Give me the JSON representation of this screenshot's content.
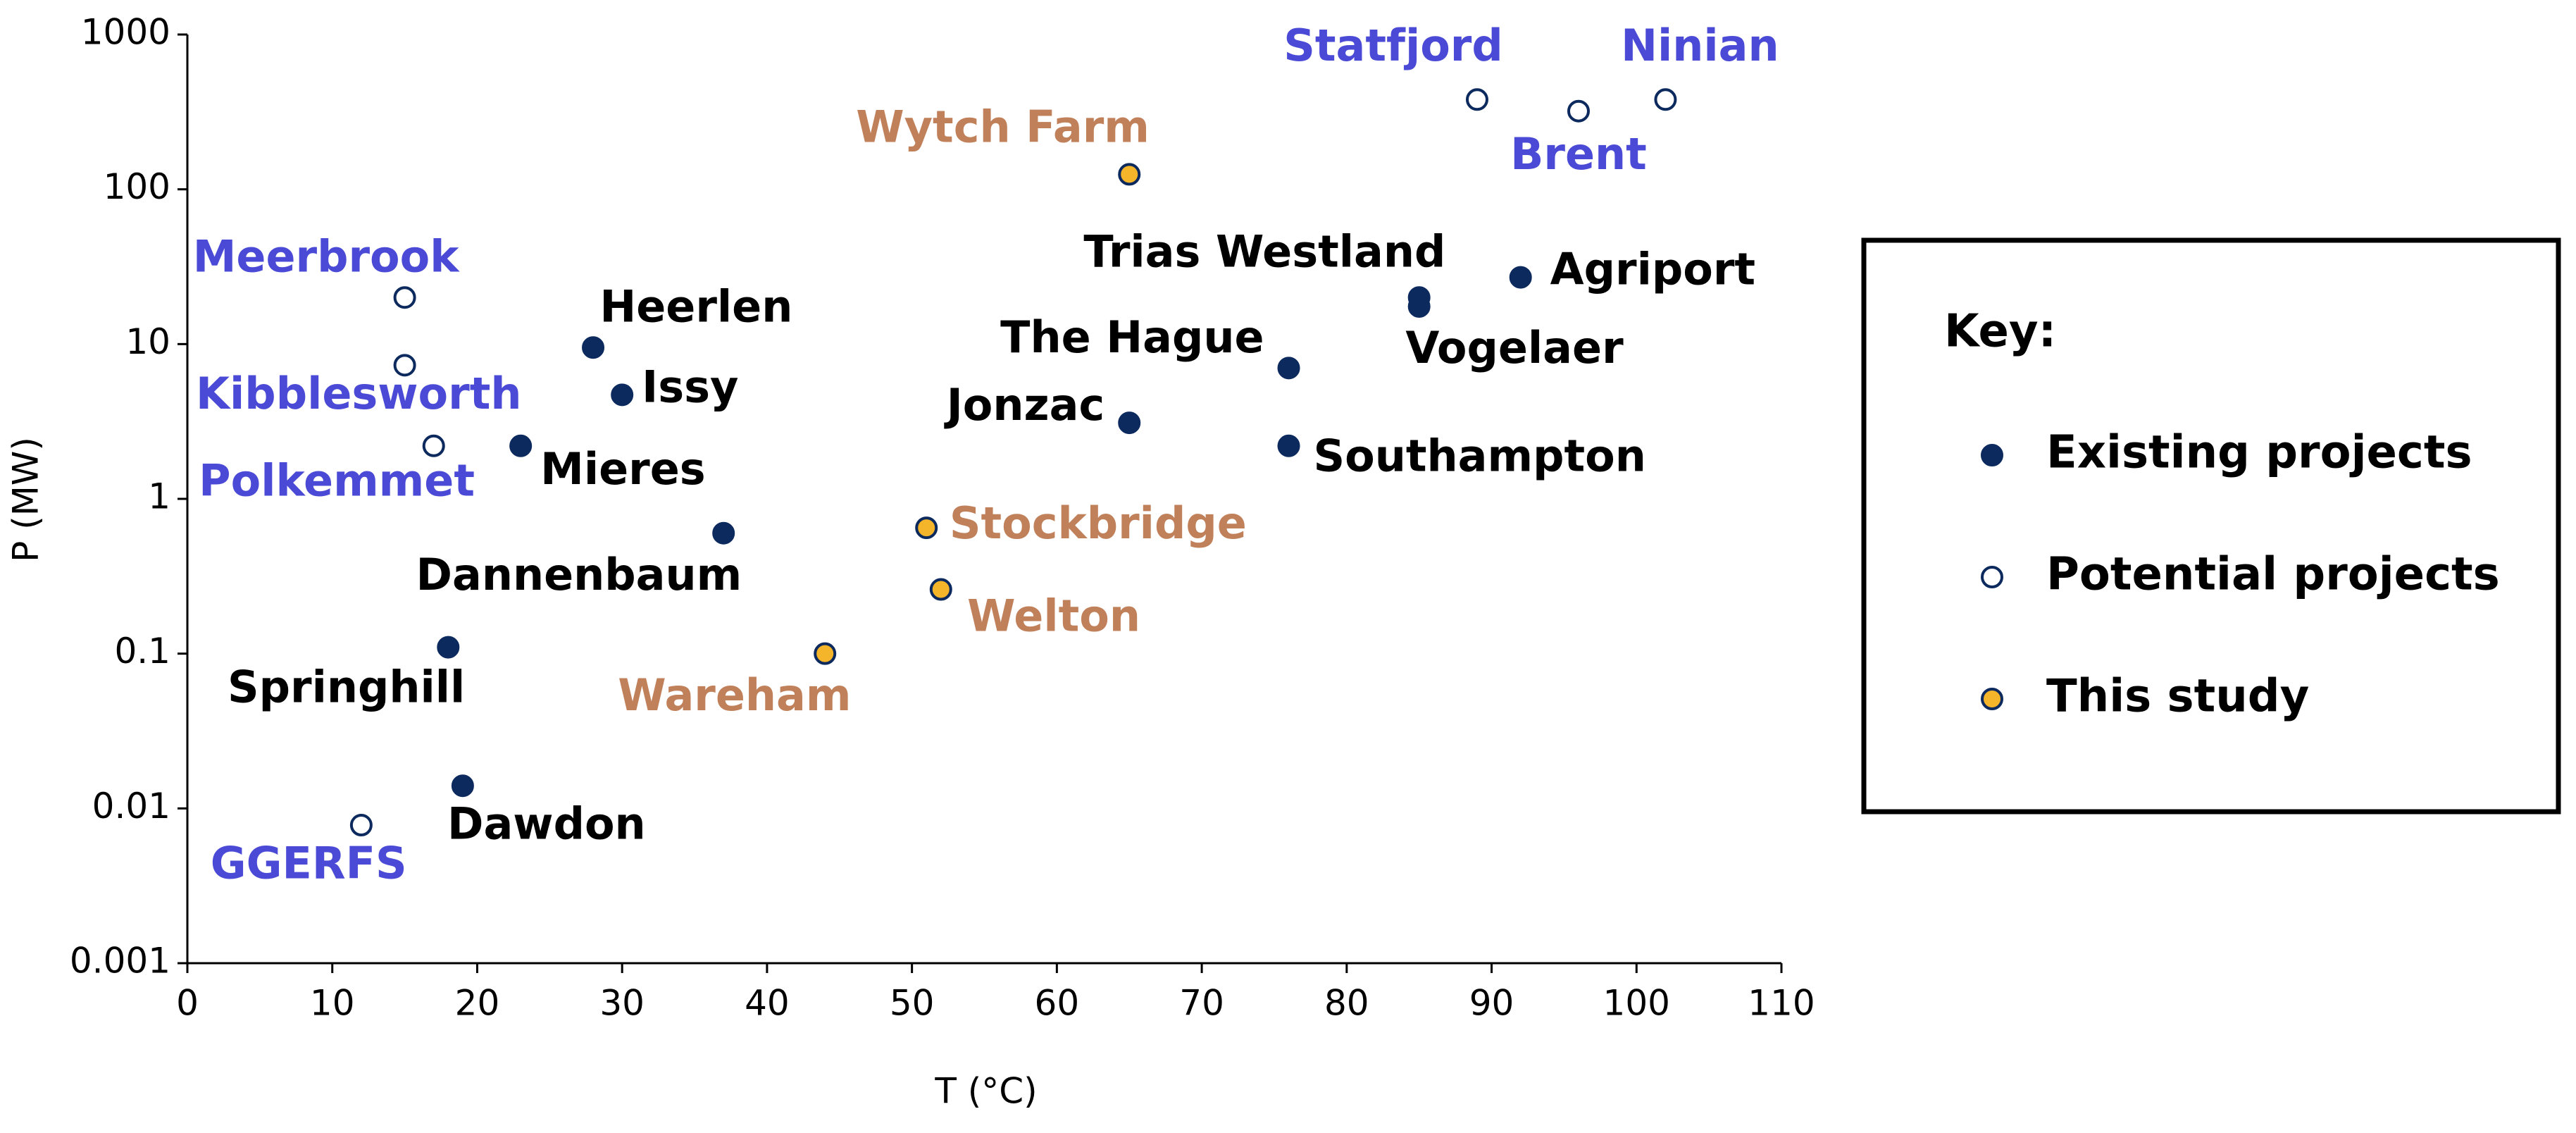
{
  "chart_data": {
    "type": "scatter",
    "xlabel": "T (°C)",
    "ylabel": "P (MW)",
    "xlim": [
      0,
      110
    ],
    "xticks": [
      0,
      10,
      20,
      30,
      40,
      50,
      60,
      70,
      80,
      90,
      100,
      110
    ],
    "ylim": [
      0.001,
      1000
    ],
    "yticks": [
      0.001,
      0.01,
      0.1,
      1,
      10,
      100,
      1000
    ],
    "ylog": true,
    "legend_title": "Key:",
    "legend": "right",
    "series": [
      {
        "name": "Existing projects",
        "color": "#0d2a5e",
        "edge_color": "#0d2a5e",
        "label_color": "#000000",
        "x": [
          28,
          30,
          23,
          37,
          18,
          19,
          85,
          85,
          92,
          76,
          65,
          76
        ],
        "values": [
          9.5,
          4.7,
          2.2,
          0.6,
          0.11,
          0.014,
          20,
          17.5,
          27,
          7,
          3.1,
          2.2
        ],
        "labels": [
          "Heerlen",
          "Issy",
          "Mieres",
          "Dannenbaum",
          "Springhill",
          "Dawdon",
          "Trias Westland",
          "Vogelaer",
          "Agriport",
          "The Hague",
          "Jonzac",
          "Southampton"
        ]
      },
      {
        "name": "Potential projects",
        "color": "#ffffff",
        "edge_color": "#0d2a5e",
        "label_color": "#4a4ad6",
        "x": [
          15,
          15,
          17,
          12,
          89,
          96,
          102
        ],
        "values": [
          20,
          7.3,
          2.2,
          0.0078,
          380,
          320,
          380
        ],
        "labels": [
          "Meerbrook",
          "Kibblesworth",
          "Polkemmet",
          "GGERFS",
          "Statfjord",
          "Brent",
          "Ninian"
        ]
      },
      {
        "name": "This study",
        "color": "#f5b52a",
        "edge_color": "#0d2a5e",
        "label_color": "#c0805a",
        "x": [
          65,
          51,
          52,
          44
        ],
        "values": [
          125,
          0.65,
          0.26,
          0.1
        ],
        "labels": [
          "Wytch Farm",
          "Stockbridge",
          "Welton",
          "Wareham"
        ]
      }
    ]
  }
}
